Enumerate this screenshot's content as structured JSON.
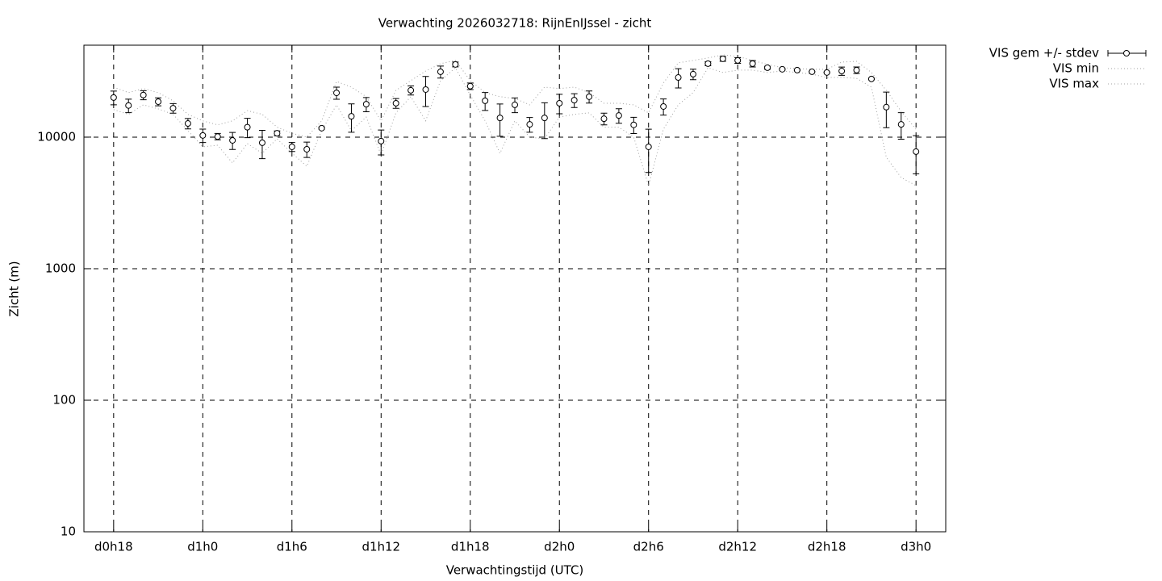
{
  "chart_data": {
    "type": "errorbar",
    "title": "Verwachting 2026032718: RijnEnIJssel - zicht",
    "x_label": "Verwachtingstijd (UTC)",
    "y_label": "Zicht (m)",
    "log_y": true,
    "grid": true,
    "legend": "outside-top-right",
    "x": [
      18,
      19,
      20,
      21,
      22,
      23,
      24,
      25,
      26,
      27,
      28,
      29,
      30,
      31,
      32,
      33,
      34,
      35,
      36,
      37,
      38,
      39,
      40,
      41,
      42,
      43,
      44,
      45,
      46,
      47,
      48,
      49,
      50,
      51,
      52,
      53,
      54,
      55,
      56,
      57,
      58,
      59,
      60,
      61,
      62,
      63,
      64,
      65,
      66,
      67,
      68,
      69,
      70,
      71,
      72
    ],
    "xlim": [
      16,
      74
    ],
    "xticks": [
      {
        "value": 18,
        "label": "d0h18"
      },
      {
        "value": 24,
        "label": "d1h0"
      },
      {
        "value": 30,
        "label": "d1h6"
      },
      {
        "value": 36,
        "label": "d1h12"
      },
      {
        "value": 42,
        "label": "d1h18"
      },
      {
        "value": 48,
        "label": "d2h0"
      },
      {
        "value": 54,
        "label": "d2h6"
      },
      {
        "value": 60,
        "label": "d2h12"
      },
      {
        "value": 66,
        "label": "d2h18"
      },
      {
        "value": 72,
        "label": "d3h0"
      }
    ],
    "ylim": [
      10,
      50000
    ],
    "yticks": [
      10,
      100,
      1000,
      10000
    ],
    "series": [
      {
        "name": "VIS gem +/- stdev",
        "color": "#000000",
        "style": "errorbar",
        "values": [
          20000,
          17400,
          20900,
          18600,
          16600,
          12700,
          10300,
          10100,
          9450,
          11900,
          9060,
          10700,
          8440,
          8090,
          11700,
          21700,
          14400,
          17800,
          9320,
          18100,
          22700,
          23000,
          31400,
          35700,
          24400,
          18900,
          14000,
          17600,
          12500,
          14000,
          18100,
          19100,
          20300,
          13800,
          14600,
          12400,
          8440,
          17100,
          28400,
          30100,
          36200,
          39400,
          38300,
          36200,
          33700,
          32800,
          32300,
          31400,
          31000,
          31800,
          32300,
          27700,
          16900,
          12500,
          7760
        ],
        "errors": [
          2400,
          2050,
          1650,
          1300,
          1400,
          1150,
          1200,
          560,
          1400,
          2000,
          2200,
          450,
          660,
          1080,
          200,
          2300,
          3500,
          2200,
          2000,
          1550,
          1800,
          5900,
          3300,
          1500,
          1400,
          2950,
          3850,
          2250,
          1600,
          4250,
          3050,
          2300,
          2150,
          1400,
          1850,
          1750,
          3050,
          2400,
          4750,
          2750,
          1250,
          1700,
          1900,
          2050,
          900,
          400,
          300,
          200,
          200,
          2300,
          1850,
          300,
          5100,
          2850,
          2500
        ]
      },
      {
        "name": "VIS min",
        "color": "#a0a0a0",
        "style": "dotted",
        "values": [
          16200,
          14900,
          17600,
          16400,
          14900,
          11200,
          8440,
          8680,
          6360,
          8930,
          7540,
          9720,
          7540,
          6010,
          11200,
          17600,
          11200,
          14200,
          7330,
          15300,
          20300,
          13300,
          26900,
          33700,
          20900,
          13300,
          7540,
          13300,
          10000,
          9720,
          14200,
          14900,
          15300,
          11900,
          11900,
          10000,
          4280,
          11500,
          17600,
          21800,
          33700,
          31000,
          32300,
          32300,
          31000,
          31800,
          31000,
          30100,
          28400,
          28400,
          28000,
          24000,
          7030,
          4930,
          4280
        ]
      },
      {
        "name": "VIS max",
        "color": "#a0a0a0",
        "style": "dotted",
        "values": [
          24000,
          21800,
          23400,
          21800,
          18900,
          14900,
          13300,
          12400,
          13300,
          15900,
          14900,
          11900,
          10700,
          10000,
          13300,
          26500,
          24000,
          20300,
          13300,
          22700,
          26900,
          31800,
          36200,
          38300,
          26900,
          21800,
          20300,
          19700,
          17600,
          24000,
          23400,
          24000,
          21800,
          18100,
          18100,
          17600,
          15300,
          25800,
          36700,
          38300,
          40000,
          42200,
          41100,
          38300,
          35700,
          33700,
          33200,
          32800,
          32800,
          37200,
          37700,
          31000,
          22700,
          15700,
          11500
        ]
      }
    ]
  }
}
